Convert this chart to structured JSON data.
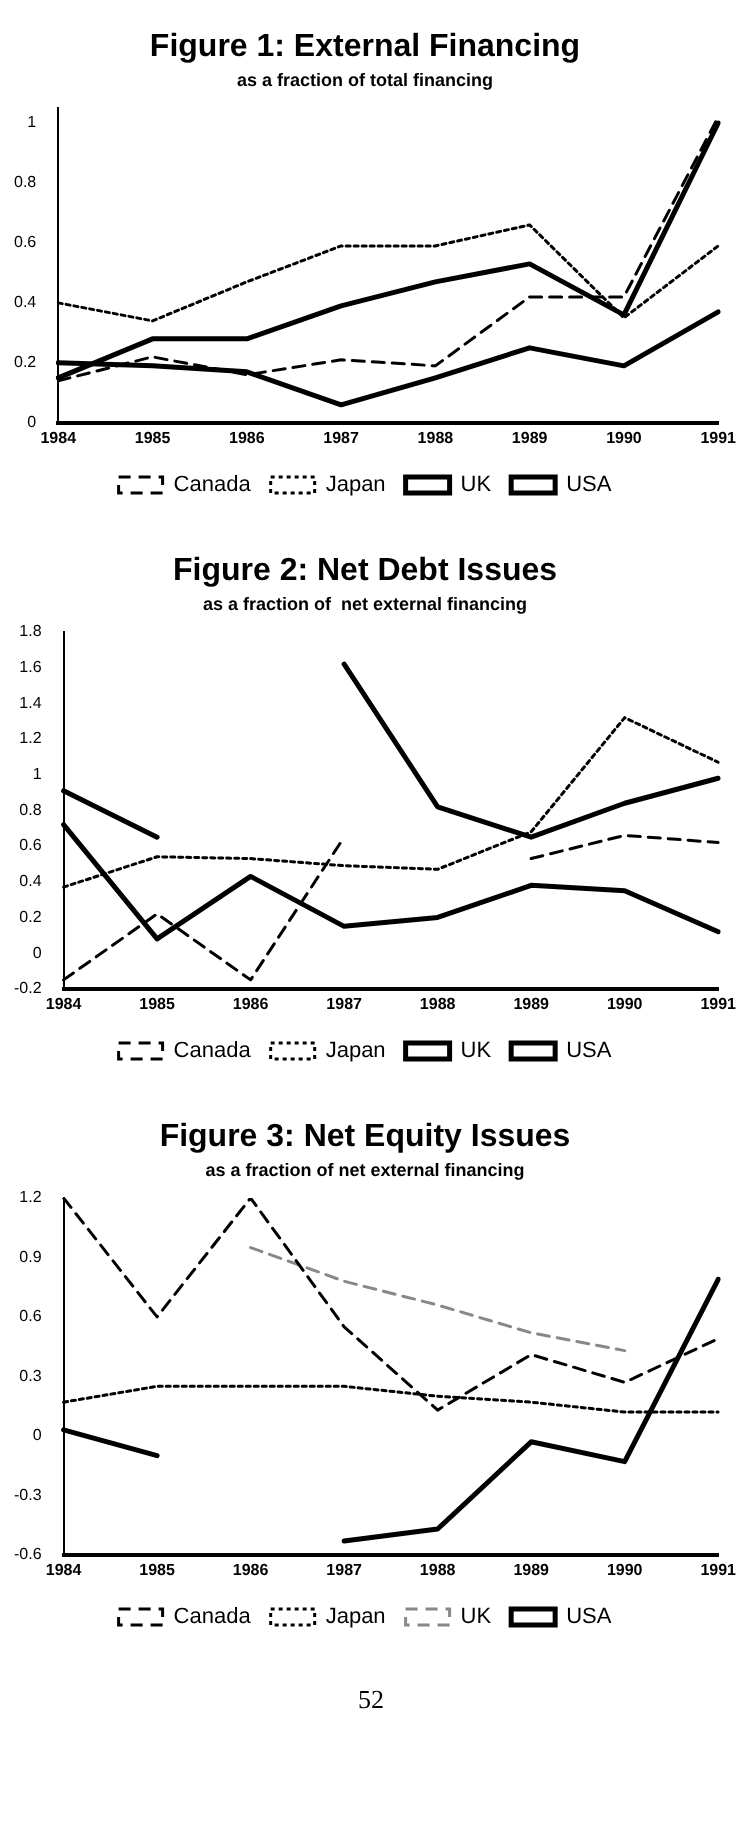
{
  "chart_data": [
    {
      "type": "line",
      "title": "Figure 1: External Financing",
      "subtitle": "as a fraction of total financing",
      "categories": [
        "1984",
        "1985",
        "1986",
        "1987",
        "1988",
        "1989",
        "1990",
        "1991"
      ],
      "ylim": [
        0,
        1.05
      ],
      "yticks": [
        0,
        0.2,
        0.4,
        0.6,
        0.8,
        1
      ],
      "grid": false,
      "legend": "bottom",
      "marker": "none",
      "series": [
        {
          "name": "Canada",
          "color": "#000000",
          "line_style": "dashed",
          "values": [
            0.14,
            0.22,
            0.16,
            0.21,
            0.19,
            0.42,
            0.42,
            1.02
          ]
        },
        {
          "name": "Japan",
          "color": "#000000",
          "line_style": "dotted",
          "values": [
            0.4,
            0.34,
            0.47,
            0.59,
            0.59,
            0.66,
            0.35,
            0.59
          ]
        },
        {
          "name": "UK",
          "color": "#000000",
          "line_style": "solid",
          "values": [
            0.15,
            0.28,
            0.28,
            0.39,
            0.47,
            0.53,
            0.36,
            1.0
          ]
        },
        {
          "name": "USA",
          "color": "#000000",
          "line_style": "solid",
          "values": [
            0.2,
            0.19,
            0.17,
            0.06,
            0.15,
            0.25,
            0.19,
            0.37
          ]
        }
      ]
    },
    {
      "type": "line",
      "title": "Figure 2: Net Debt Issues",
      "subtitle": "as a fraction of  net external financing",
      "categories": [
        "1984",
        "1985",
        "1986",
        "1987",
        "1988",
        "1989",
        "1990",
        "1991"
      ],
      "ylim": [
        -0.2,
        1.8
      ],
      "yticks": [
        -0.2,
        0,
        0.2,
        0.4,
        0.6,
        0.8,
        1,
        1.2,
        1.4,
        1.6,
        1.8
      ],
      "grid": false,
      "legend": "bottom",
      "marker": "none",
      "series": [
        {
          "name": "Canada",
          "color": "#000000",
          "line_style": "dashed",
          "values": [
            -0.15,
            0.22,
            -0.15,
            0.65,
            null,
            0.53,
            0.66,
            0.62
          ]
        },
        {
          "name": "Japan",
          "color": "#000000",
          "line_style": "dotted",
          "values": [
            0.37,
            0.54,
            0.53,
            0.49,
            0.47,
            0.68,
            1.32,
            1.07
          ]
        },
        {
          "name": "UK",
          "color": "#000000",
          "line_style": "solid",
          "values": [
            0.72,
            0.08,
            0.43,
            0.15,
            0.2,
            0.38,
            0.35,
            0.12
          ]
        },
        {
          "name": "USA",
          "color": "#000000",
          "line_style": "solid",
          "values": [
            0.91,
            0.65,
            null,
            1.62,
            0.82,
            0.65,
            0.84,
            0.98
          ]
        }
      ]
    },
    {
      "type": "line",
      "title": "Figure 3: Net Equity Issues",
      "subtitle": "as a fraction of net external financing",
      "categories": [
        "1984",
        "1985",
        "1986",
        "1987",
        "1988",
        "1989",
        "1990",
        "1991"
      ],
      "ylim": [
        -0.6,
        1.2
      ],
      "yticks": [
        -0.6,
        -0.3,
        0,
        0.3,
        0.6,
        0.9,
        1.2
      ],
      "grid": false,
      "legend": "bottom",
      "marker": "none",
      "annotations": [
        "52"
      ],
      "series": [
        {
          "name": "Canada",
          "color": "#000000",
          "line_style": "dashed",
          "values": [
            1.2,
            0.6,
            1.2,
            0.55,
            0.13,
            0.41,
            0.27,
            0.49
          ]
        },
        {
          "name": "Japan",
          "color": "#000000",
          "line_style": "dotted",
          "values": [
            0.17,
            0.25,
            0.25,
            0.25,
            0.2,
            0.17,
            0.12,
            0.12
          ]
        },
        {
          "name": "UK",
          "color": "#888888",
          "line_style": "dashed",
          "values": [
            null,
            null,
            0.95,
            0.78,
            0.66,
            0.52,
            0.43,
            null
          ]
        },
        {
          "name": "USA",
          "color": "#000000",
          "line_style": "solid",
          "values": [
            0.03,
            -0.1,
            null,
            -0.53,
            -0.47,
            -0.03,
            -0.13,
            0.79
          ]
        }
      ]
    }
  ]
}
